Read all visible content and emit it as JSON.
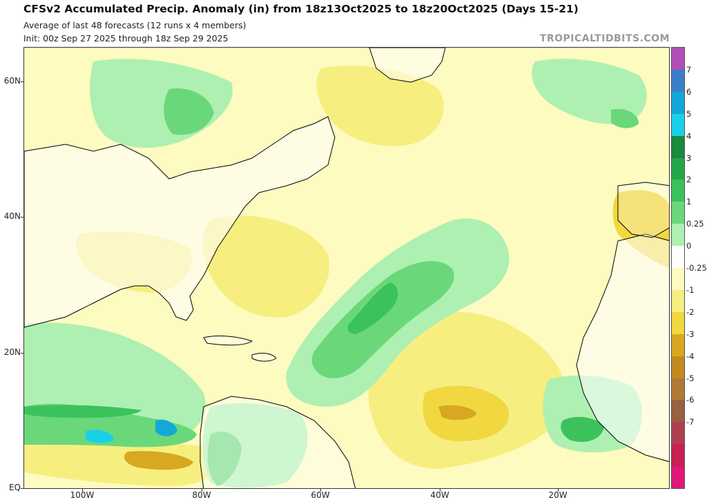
{
  "header": {
    "title": "CFSv2 Accumulated Precip. Anomaly (in) from 18z13Oct2025 to 18z20Oct2025 (Days 15-21)",
    "subtitle1": "Average of last 48 forecasts (12 runs x 4 members)",
    "subtitle2": "Init: 00z Sep 27 2025 through 18z Sep 29 2025",
    "credit": "TROPICALTIDBITS.COM"
  },
  "axes": {
    "lat_labels": [
      "60N",
      "40N",
      "20N",
      "EQ"
    ],
    "lon_labels": [
      "100W",
      "80W",
      "60W",
      "40W",
      "20W"
    ]
  },
  "colorbar": {
    "labels": [
      "7",
      "6",
      "5",
      "4",
      "3",
      "2",
      "1",
      "0.25",
      "0",
      "-0.25",
      "-1",
      "-2",
      "-3",
      "-4",
      "-5",
      "-6",
      "-7"
    ],
    "colors": [
      "#b04fb8",
      "#3c7fc8",
      "#14a8d8",
      "#18d0e8",
      "#1a8a3c",
      "#22a84a",
      "#3cc25c",
      "#6ad87a",
      "#aef0b2",
      "#ffffff",
      "#fdfbc0",
      "#f7ee80",
      "#f1d740",
      "#d7a820",
      "#c38a20",
      "#b07a34",
      "#9a6040",
      "#b04050",
      "#c82050",
      "#e01878"
    ]
  },
  "map_regions": {
    "wet": "Atlantic SW-NE band (20-35N), Caribbean/Central America, NE Pacific (10N), West Africa coast, Hudson Bay, Iceland/UK",
    "dry": "Central Atlantic (5-25N, 20-50W), US Southeast/Gulf coast, Eastern Pacific (5N), Iberia/NW Africa, Greenland south"
  }
}
